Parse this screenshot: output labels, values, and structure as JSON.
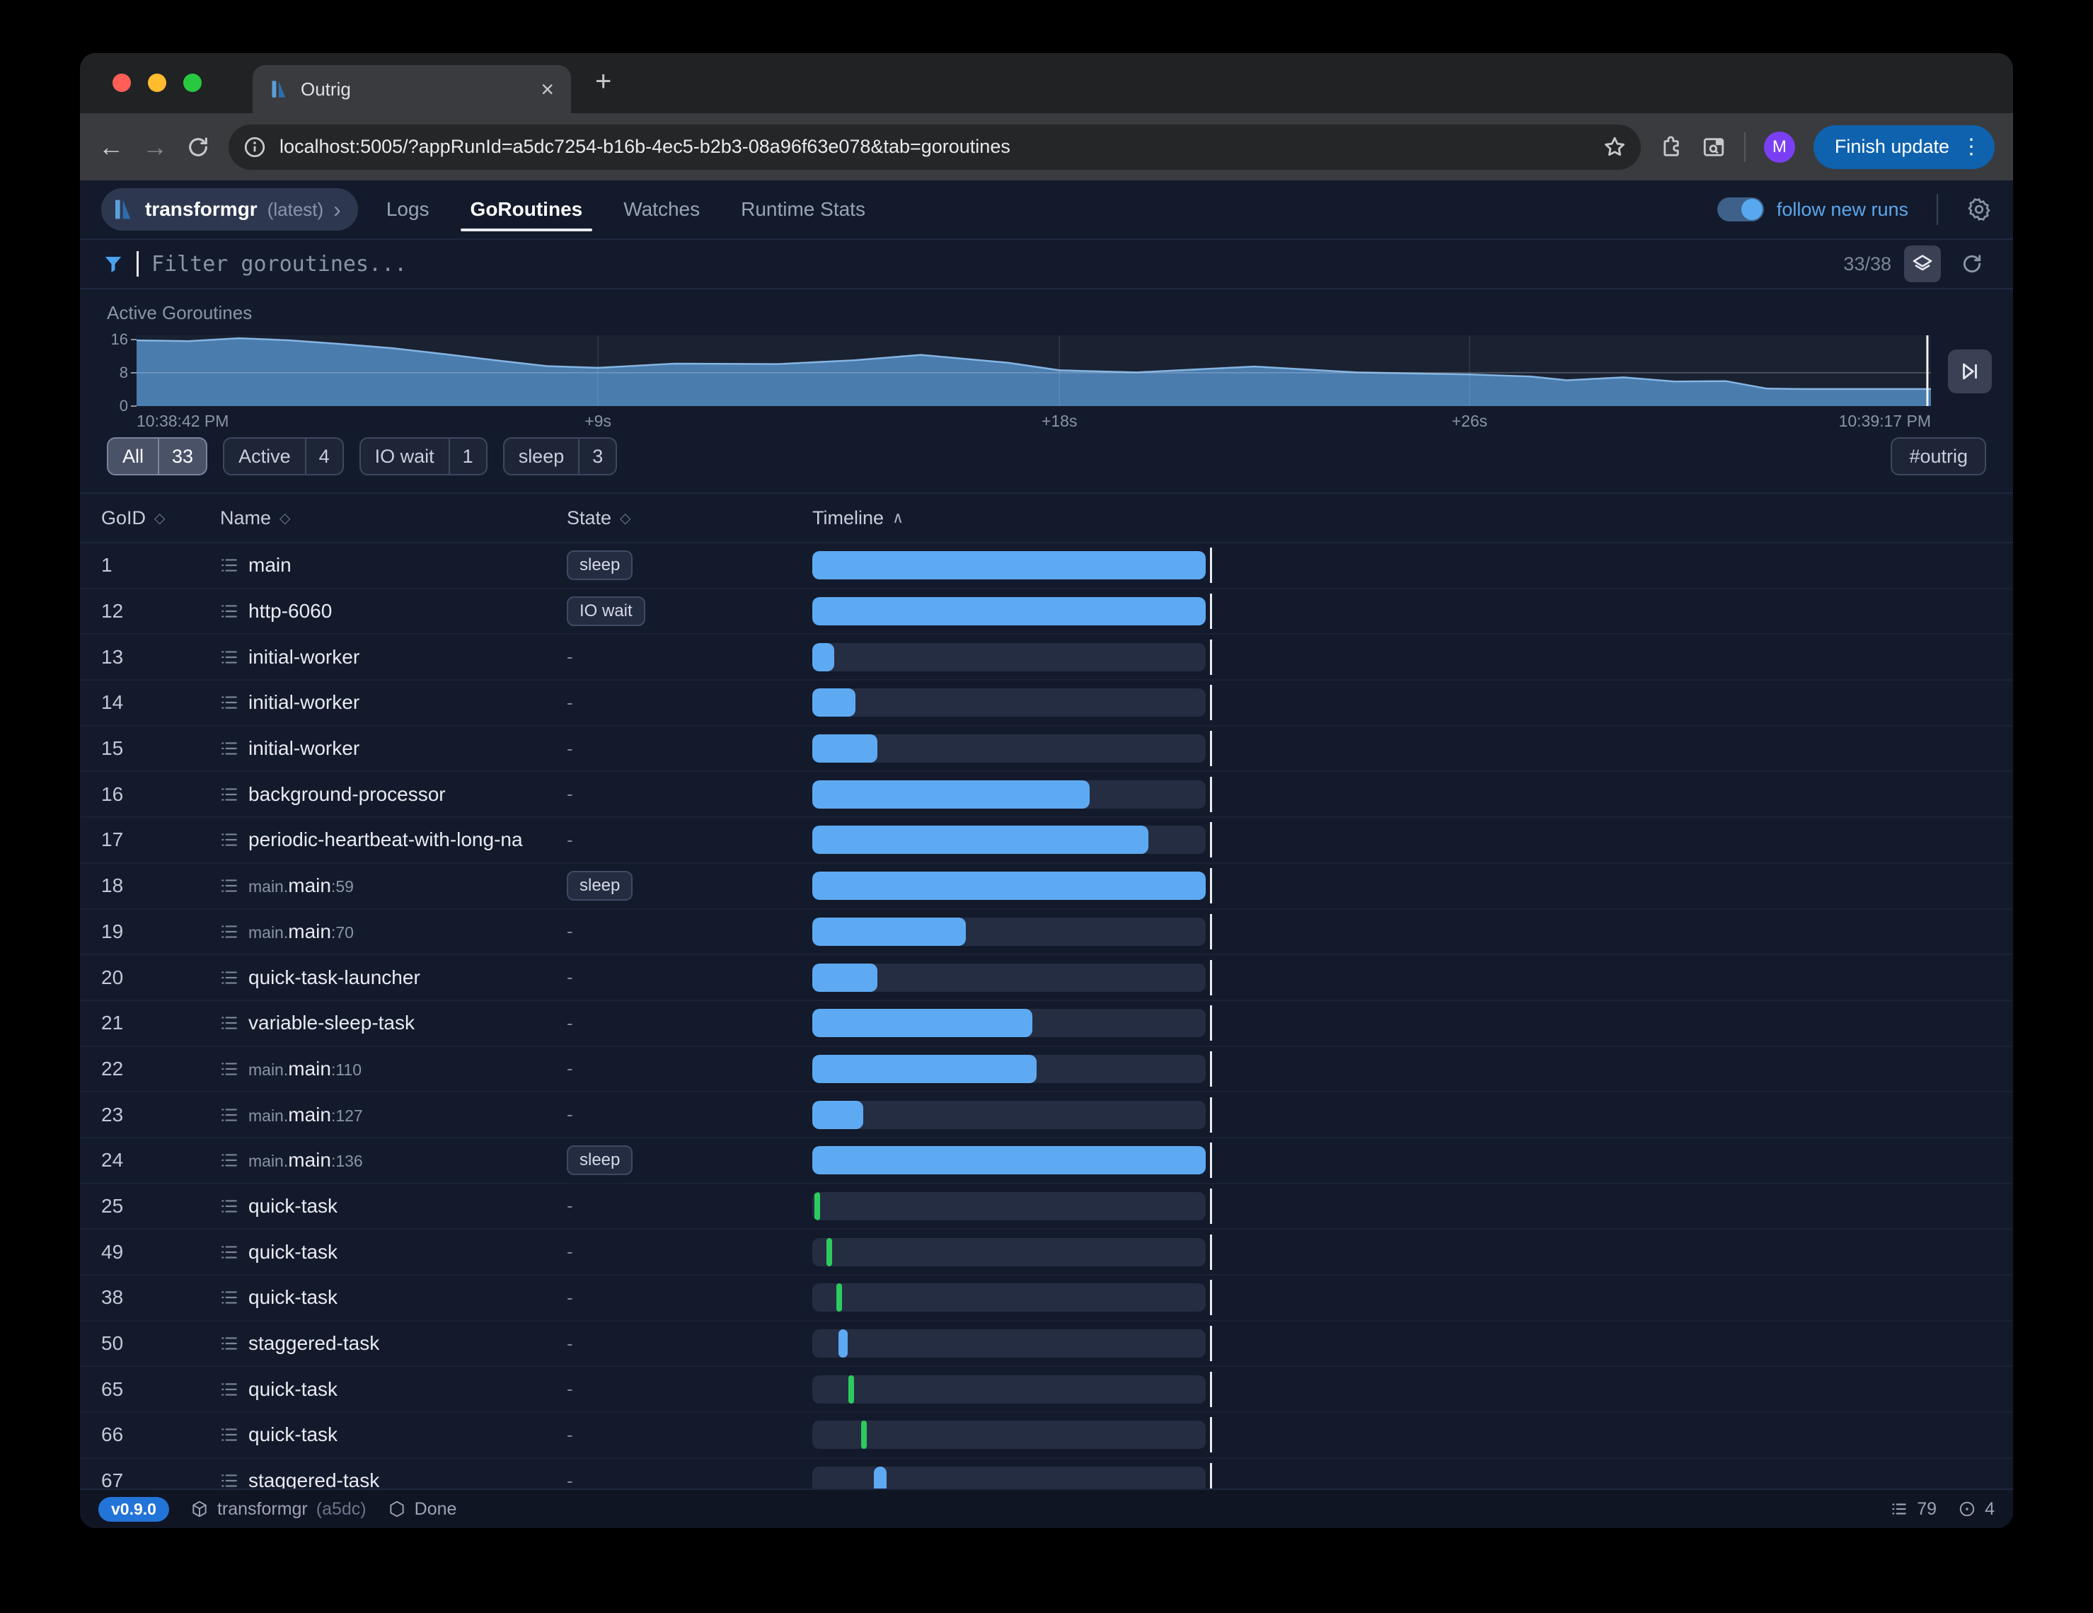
{
  "browser": {
    "tab_title": "Outrig",
    "url": "localhost:5005/?appRunId=a5dc7254-b16b-4ec5-b2b3-08a96f63e078&tab=goroutines",
    "avatar_letter": "M",
    "update_button_label": "Finish update"
  },
  "header": {
    "app_name": "transformgr",
    "app_tag": "(latest)",
    "tabs": [
      {
        "label": "Logs",
        "active": false
      },
      {
        "label": "GoRoutines",
        "active": true
      },
      {
        "label": "Watches",
        "active": false
      },
      {
        "label": "Runtime Stats",
        "active": false
      }
    ],
    "follow_toggle_label": "follow new runs",
    "follow_toggle_on": true
  },
  "filter": {
    "placeholder": "Filter goroutines...",
    "count": "33/38"
  },
  "chart_data": {
    "type": "area",
    "title": "Active Goroutines",
    "x": [
      0,
      1,
      2,
      3,
      4,
      5,
      6,
      7,
      8,
      9,
      10.5,
      12.5,
      14,
      15.3,
      17,
      18,
      19.5,
      21.8,
      23.8,
      26,
      27.2,
      27.9,
      29,
      30,
      31,
      31.8,
      32.5,
      35
    ],
    "values": [
      15.8,
      15.6,
      16.3,
      15.8,
      14.9,
      13.9,
      12.5,
      11.0,
      9.6,
      9.2,
      10.2,
      10.1,
      11.0,
      12.3,
      10.4,
      8.6,
      8.1,
      9.5,
      8.1,
      7.6,
      7.1,
      6.2,
      6.9,
      5.9,
      6.0,
      4.2,
      4.1,
      4.1
    ],
    "ylim": [
      0,
      17
    ],
    "yticks": [
      0,
      8,
      16
    ],
    "grid_y_value": 8,
    "xrange_s": [
      0,
      35
    ],
    "xticks": [
      {
        "label": "10:38:42 PM",
        "s": 0
      },
      {
        "label": "+9s",
        "s": 9
      },
      {
        "label": "+18s",
        "s": 18
      },
      {
        "label": "+26s",
        "s": 26
      },
      {
        "label": "10:39:17 PM",
        "s": 35
      }
    ],
    "grid_x_seconds": [
      9,
      18,
      26
    ],
    "colors": {
      "fill": "#4a7cae",
      "stroke": "#85b5e2",
      "grid": "rgba(200,208,222,0.35)",
      "vgrid": "rgba(255,255,255,0.10)",
      "cursor": "#f2f3f5"
    }
  },
  "state_filters": [
    {
      "label": "All",
      "count": "33",
      "active": true
    },
    {
      "label": "Active",
      "count": "4",
      "active": false
    },
    {
      "label": "IO wait",
      "count": "1",
      "active": false
    },
    {
      "label": "sleep",
      "count": "3",
      "active": false
    }
  ],
  "tag_filter": "#outrig",
  "table": {
    "columns": [
      {
        "label": "GoID",
        "sort": "none"
      },
      {
        "label": "Name",
        "sort": "none"
      },
      {
        "label": "State",
        "sort": "none"
      },
      {
        "label": "Timeline",
        "sort": "asc"
      }
    ],
    "rows": [
      {
        "goid": "1",
        "name": "main",
        "state": "sleep",
        "badge": true,
        "bar": {
          "color": "blue",
          "start": 0,
          "width": 100
        }
      },
      {
        "goid": "12",
        "name": "http-6060",
        "state": "IO wait",
        "badge": true,
        "bar": {
          "color": "blue",
          "start": 0,
          "width": 100
        }
      },
      {
        "goid": "13",
        "name": "initial-worker",
        "state": "-",
        "badge": false,
        "bar": {
          "color": "blue",
          "start": 0,
          "width": 5.5
        }
      },
      {
        "goid": "14",
        "name": "initial-worker",
        "state": "-",
        "badge": false,
        "bar": {
          "color": "blue",
          "start": 0,
          "width": 11
        }
      },
      {
        "goid": "15",
        "name": "initial-worker",
        "state": "-",
        "badge": false,
        "bar": {
          "color": "blue",
          "start": 0,
          "width": 16.5
        }
      },
      {
        "goid": "16",
        "name": "background-processor",
        "state": "-",
        "badge": false,
        "bar": {
          "color": "blue",
          "start": 0,
          "width": 70.5
        }
      },
      {
        "goid": "17",
        "name": "periodic-heartbeat-with-long-na",
        "state": "-",
        "badge": false,
        "bar": {
          "color": "blue",
          "start": 0,
          "width": 85.5
        }
      },
      {
        "goid": "18",
        "pre": "main.",
        "name": "main",
        "post": ":59",
        "state": "sleep",
        "badge": true,
        "bar": {
          "color": "blue",
          "start": 0,
          "width": 100
        }
      },
      {
        "goid": "19",
        "pre": "main.",
        "name": "main",
        "post": ":70",
        "state": "-",
        "badge": false,
        "bar": {
          "color": "blue",
          "start": 0,
          "width": 39
        }
      },
      {
        "goid": "20",
        "name": "quick-task-launcher",
        "state": "-",
        "badge": false,
        "bar": {
          "color": "blue",
          "start": 0,
          "width": 16.5
        }
      },
      {
        "goid": "21",
        "name": "variable-sleep-task",
        "state": "-",
        "badge": false,
        "bar": {
          "color": "blue",
          "start": 0,
          "width": 56
        }
      },
      {
        "goid": "22",
        "pre": "main.",
        "name": "main",
        "post": ":110",
        "state": "-",
        "badge": false,
        "bar": {
          "color": "blue",
          "start": 0,
          "width": 57
        }
      },
      {
        "goid": "23",
        "pre": "main.",
        "name": "main",
        "post": ":127",
        "state": "-",
        "badge": false,
        "bar": {
          "color": "blue",
          "start": 0,
          "width": 13
        }
      },
      {
        "goid": "24",
        "pre": "main.",
        "name": "main",
        "post": ":136",
        "state": "sleep",
        "badge": true,
        "bar": {
          "color": "blue",
          "start": 0,
          "width": 100
        }
      },
      {
        "goid": "25",
        "name": "quick-task",
        "state": "-",
        "badge": false,
        "bar": {
          "color": "green",
          "start": 0.6,
          "width": 1.4
        }
      },
      {
        "goid": "49",
        "name": "quick-task",
        "state": "-",
        "badge": false,
        "bar": {
          "color": "green",
          "start": 3.6,
          "width": 1.4
        }
      },
      {
        "goid": "38",
        "name": "quick-task",
        "state": "-",
        "badge": false,
        "bar": {
          "color": "green",
          "start": 6.2,
          "width": 1.4
        }
      },
      {
        "goid": "50",
        "name": "staggered-task",
        "state": "-",
        "badge": false,
        "bar": {
          "color": "blue",
          "start": 6.6,
          "width": 2.4
        }
      },
      {
        "goid": "65",
        "name": "quick-task",
        "state": "-",
        "badge": false,
        "bar": {
          "color": "green",
          "start": 9.2,
          "width": 1.4
        }
      },
      {
        "goid": "66",
        "name": "quick-task",
        "state": "-",
        "badge": false,
        "bar": {
          "color": "green",
          "start": 12.4,
          "width": 1.4
        }
      },
      {
        "goid": "67",
        "name": "staggered-task",
        "state": "-",
        "badge": false,
        "bar": {
          "color": "blue",
          "start": 15.6,
          "width": 3.2
        }
      }
    ]
  },
  "footer": {
    "version": "v0.9.0",
    "app_name": "transformgr",
    "app_hash": "(a5dc)",
    "status": "Done",
    "log_count": "79",
    "goroutine_count": "4"
  }
}
